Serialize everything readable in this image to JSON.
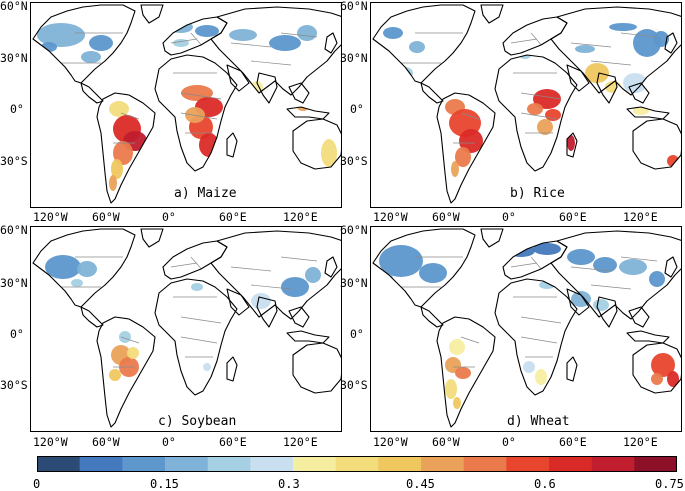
{
  "lat_labels": [
    "60°N",
    "30°N",
    "0°",
    "30°S"
  ],
  "lon_labels": [
    "120°W",
    "60°W",
    "0°",
    "60°E",
    "120°E"
  ],
  "panels": [
    {
      "id": "a",
      "label": "a) Maize"
    },
    {
      "id": "b",
      "label": "b) Rice"
    },
    {
      "id": "c",
      "label": "c) Soybean"
    },
    {
      "id": "d",
      "label": "d) Wheat"
    }
  ],
  "colorbar": {
    "ticks": [
      "0",
      "0.15",
      "0.3",
      "0.45",
      "0.6",
      "0.75"
    ],
    "range": [
      0,
      0.75
    ],
    "bins": 15,
    "colors": [
      "#2b4a74",
      "#4479bd",
      "#5d97cc",
      "#7fb2d6",
      "#a5d0e4",
      "#c8dff0",
      "#f5eea0",
      "#f2dc7c",
      "#efc75e",
      "#eaa15a",
      "#ea7a4c",
      "#e8452e",
      "#da2a27",
      "#c01d2e",
      "#8c1028"
    ]
  }
}
